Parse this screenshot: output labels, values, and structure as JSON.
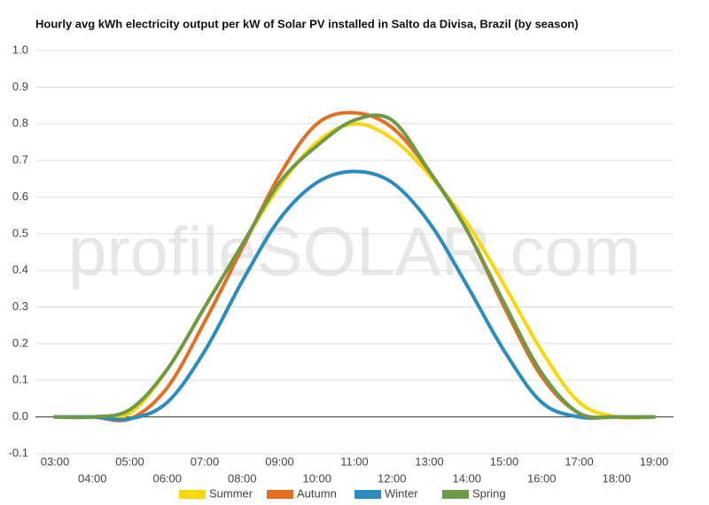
{
  "chart_data": {
    "type": "line",
    "title": "Hourly avg kWh electricity output per kW of Solar PV installed in Salto da Divisa, Brazil (by season)",
    "watermark": "profileSOLAR.com",
    "categories": [
      "03:00",
      "04:00",
      "05:00",
      "06:00",
      "07:00",
      "08:00",
      "09:00",
      "10:00",
      "11:00",
      "12:00",
      "13:00",
      "14:00",
      "15:00",
      "16:00",
      "17:00",
      "18:00",
      "19:00"
    ],
    "series": [
      {
        "name": "Summer",
        "color": "#fdd605",
        "values": [
          0,
          0,
          0.01,
          0.13,
          0.3,
          0.47,
          0.63,
          0.75,
          0.8,
          0.76,
          0.66,
          0.53,
          0.36,
          0.18,
          0.04,
          0,
          0
        ]
      },
      {
        "name": "Autumn",
        "color": "#e36f24",
        "values": [
          0,
          0,
          -0.005,
          0.08,
          0.26,
          0.46,
          0.66,
          0.8,
          0.83,
          0.79,
          0.67,
          0.51,
          0.3,
          0.11,
          0.01,
          0,
          0
        ]
      },
      {
        "name": "Winter",
        "color": "#2a8cbf",
        "values": [
          0,
          0,
          -0.005,
          0.04,
          0.18,
          0.37,
          0.54,
          0.64,
          0.67,
          0.64,
          0.53,
          0.36,
          0.18,
          0.04,
          0,
          0,
          0
        ]
      },
      {
        "name": "Spring",
        "color": "#6e9a47",
        "values": [
          0,
          0,
          0.02,
          0.13,
          0.3,
          0.47,
          0.64,
          0.74,
          0.81,
          0.81,
          0.67,
          0.51,
          0.31,
          0.12,
          0.01,
          0,
          0
        ]
      }
    ],
    "ylim": [
      -0.1,
      1
    ],
    "yticks": [
      {
        "value": -0.1,
        "label": "-0.1"
      },
      {
        "value": 0,
        "label": "0.0"
      },
      0.1,
      0.2,
      0.3,
      0.4,
      0.5,
      0.6,
      0.7,
      0.8,
      0.9,
      {
        "value": 1,
        "label": "1.0"
      }
    ],
    "grid": true,
    "legend": "bottom"
  }
}
